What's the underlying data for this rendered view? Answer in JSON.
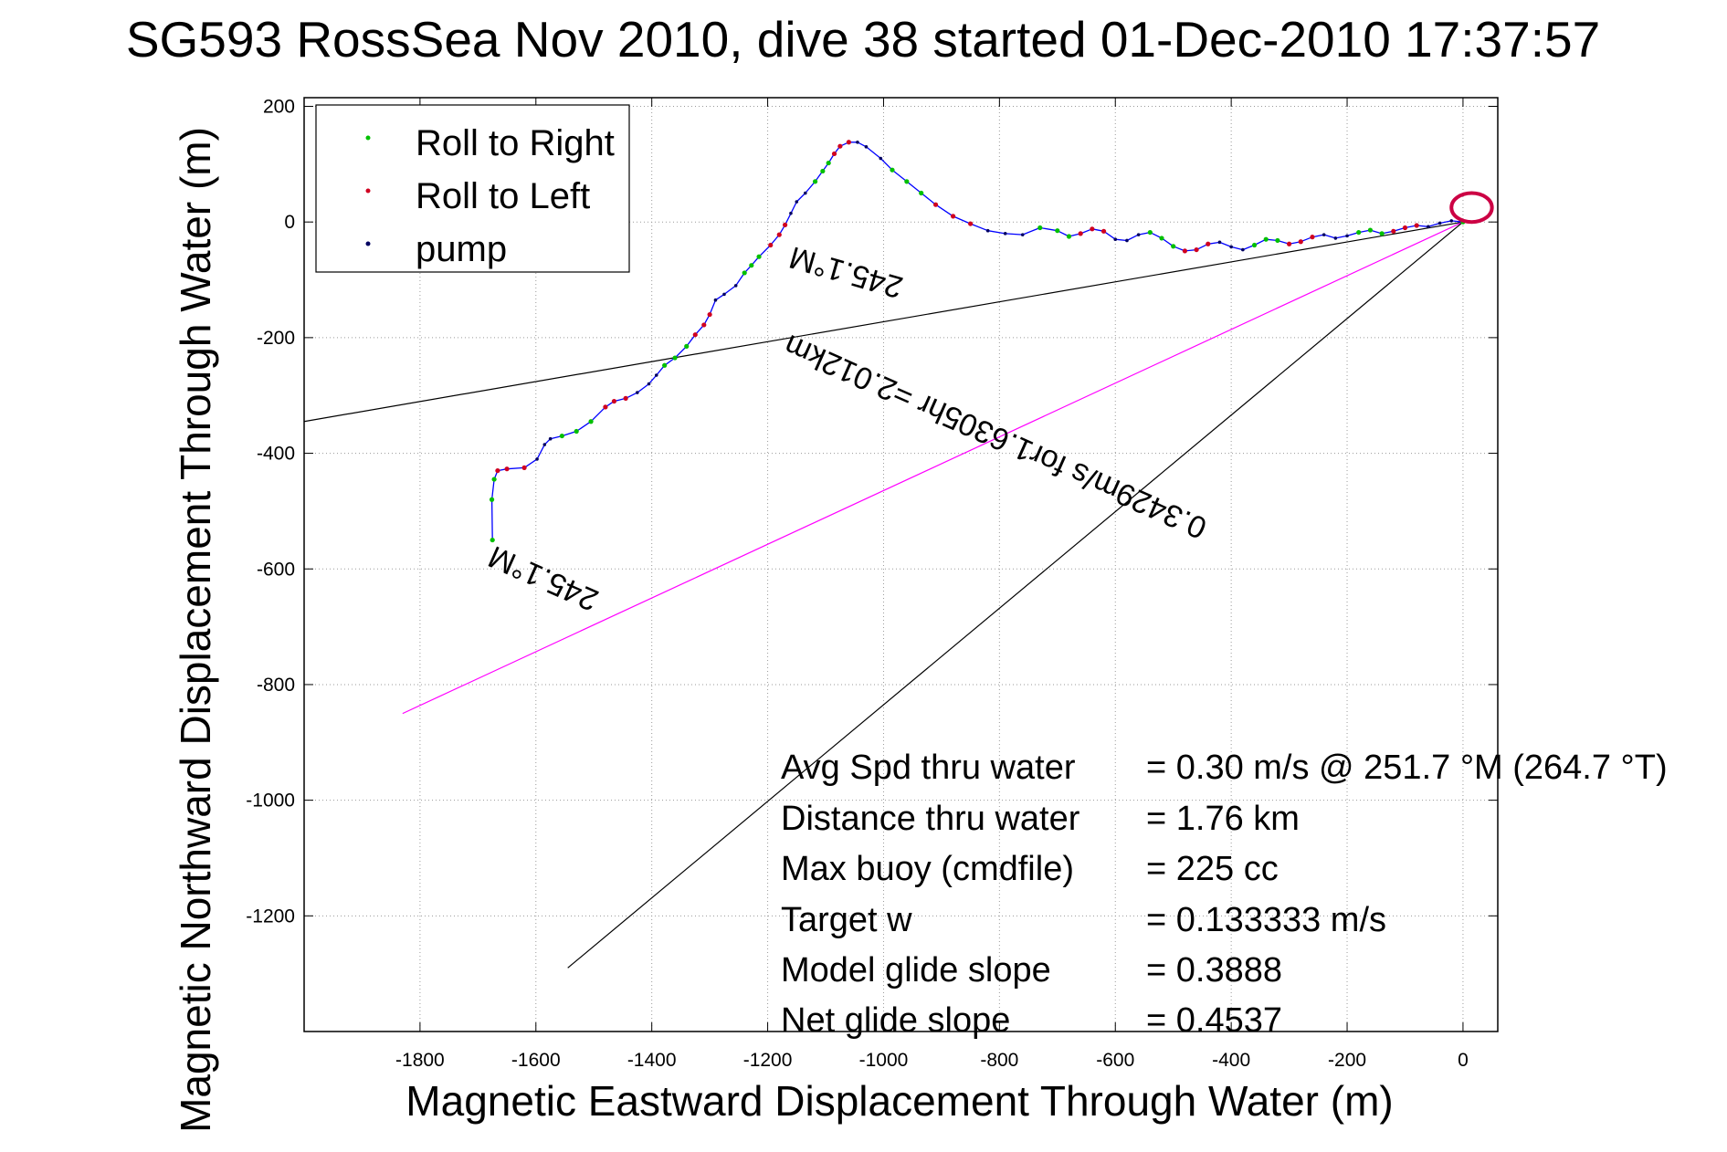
{
  "chart_data": {
    "type": "line",
    "title": "SG593 RossSea Nov 2010, dive 38 started 01-Dec-2010 17:37:57",
    "xlabel": "Magnetic Eastward Displacement Through Water (m)",
    "ylabel": "Magnetic Northward Displacement Through Water (m)",
    "xlim": [
      -2000,
      60
    ],
    "ylim": [
      -1400,
      215
    ],
    "x_ticks": [
      -1800,
      -1600,
      -1400,
      -1200,
      -1000,
      -800,
      -600,
      -400,
      -200,
      0
    ],
    "y_ticks": [
      200,
      0,
      -200,
      -400,
      -600,
      -800,
      -1000,
      -1200
    ],
    "x_tick_labels": [
      "-1800",
      "-1600",
      "-1400",
      "-1200",
      "-1000",
      "-800",
      "-600",
      "-400",
      "-200",
      "0"
    ],
    "y_tick_labels": [
      "200",
      "0",
      "-200",
      "-400",
      "-600",
      "-800",
      "-1000",
      "-1200"
    ],
    "grid": true,
    "legend": {
      "placement": "top-left",
      "entries": [
        {
          "label": "Roll to Right",
          "color": "#00c000"
        },
        {
          "label": "Roll to Left",
          "color": "#d00020"
        },
        {
          "label": "pump",
          "color": "#000060"
        }
      ]
    },
    "series": [
      {
        "name": "",
        "color": "#0000ff",
        "x": [
          -1675,
          -1676,
          -1672,
          -1666,
          -1650,
          -1620,
          -1598,
          -1585,
          -1575,
          -1555,
          -1530,
          -1505,
          -1480,
          -1465,
          -1445,
          -1425,
          -1405,
          -1392,
          -1378,
          -1360,
          -1340,
          -1325,
          -1310,
          -1300,
          -1290,
          -1275,
          -1255,
          -1240,
          -1228,
          -1215,
          -1195,
          -1180,
          -1170,
          -1160,
          -1150,
          -1135,
          -1118,
          -1105,
          -1095,
          -1085,
          -1075,
          -1060,
          -1045,
          -1030,
          -1005,
          -985,
          -960,
          -935,
          -910,
          -880,
          -850,
          -820,
          -790,
          -760,
          -730,
          -700,
          -680,
          -660,
          -640,
          -620,
          -600,
          -580,
          -560,
          -540,
          -520,
          -500,
          -480,
          -460,
          -440,
          -420,
          -400,
          -380,
          -360,
          -340,
          -320,
          -300,
          -280,
          -260,
          -240,
          -220,
          -200,
          -180,
          -160,
          -140,
          -120,
          -100,
          -80,
          -60,
          -40,
          -20,
          0
        ],
        "y": [
          -550,
          -480,
          -445,
          -430,
          -427,
          -425,
          -410,
          -385,
          -375,
          -370,
          -362,
          -345,
          -320,
          -310,
          -305,
          -295,
          -280,
          -265,
          -248,
          -235,
          -215,
          -195,
          -178,
          -160,
          -135,
          -125,
          -110,
          -88,
          -75,
          -60,
          -40,
          -22,
          -5,
          15,
          35,
          50,
          70,
          88,
          102,
          118,
          131,
          138,
          138,
          130,
          110,
          90,
          70,
          50,
          30,
          10,
          -3,
          -15,
          -20,
          -22,
          -10,
          -15,
          -25,
          -20,
          -12,
          -16,
          -30,
          -32,
          -22,
          -18,
          -28,
          -42,
          -50,
          -48,
          -38,
          -35,
          -43,
          -48,
          -40,
          -30,
          -32,
          -38,
          -34,
          -26,
          -22,
          -28,
          -24,
          -18,
          -14,
          -20,
          -16,
          -10,
          -6,
          -8,
          -2,
          2,
          0
        ]
      }
    ],
    "loop_near_origin": {
      "color": "#cc0044",
      "center": [
        15,
        25
      ],
      "radius": [
        35,
        25
      ]
    },
    "lines": [
      {
        "name": "current-vector-line",
        "color": "#000000",
        "x": [
          -2000,
          0
        ],
        "y": [
          -345,
          0
        ]
      },
      {
        "name": "heading-line",
        "color": "#ff00ff",
        "x": [
          -1830,
          0
        ],
        "y": [
          -850,
          0
        ]
      },
      {
        "name": "drift-line",
        "color": "#000000",
        "x": [
          -1545,
          0
        ],
        "y": [
          -1290,
          0
        ]
      }
    ],
    "annotations": [
      {
        "text": "0.3429m/s for1.6305hr =2.012km",
        "x": -800,
        "y": -355,
        "angle": 204
      },
      {
        "text": "245.1°M",
        "x": -1060,
        "y": -70,
        "angle": 196
      },
      {
        "text": "245.1°M",
        "x": -1580,
        "y": -600,
        "angle": 204
      }
    ],
    "stats": [
      {
        "label": "Avg Spd thru water",
        "value": "=  0.30 m/s @ 251.7 °M (264.7 °T)"
      },
      {
        "label": "Distance thru water",
        "value": "=  1.76 km"
      },
      {
        "label": "Max buoy (cmdfile)",
        "value": "= 225 cc"
      },
      {
        "label": "Target w",
        "value": "= 0.133333 m/s"
      },
      {
        "label": "Model glide slope",
        "value": "= 0.3888"
      },
      {
        "label": "Net glide slope",
        "value": "= 0.4537"
      }
    ]
  }
}
